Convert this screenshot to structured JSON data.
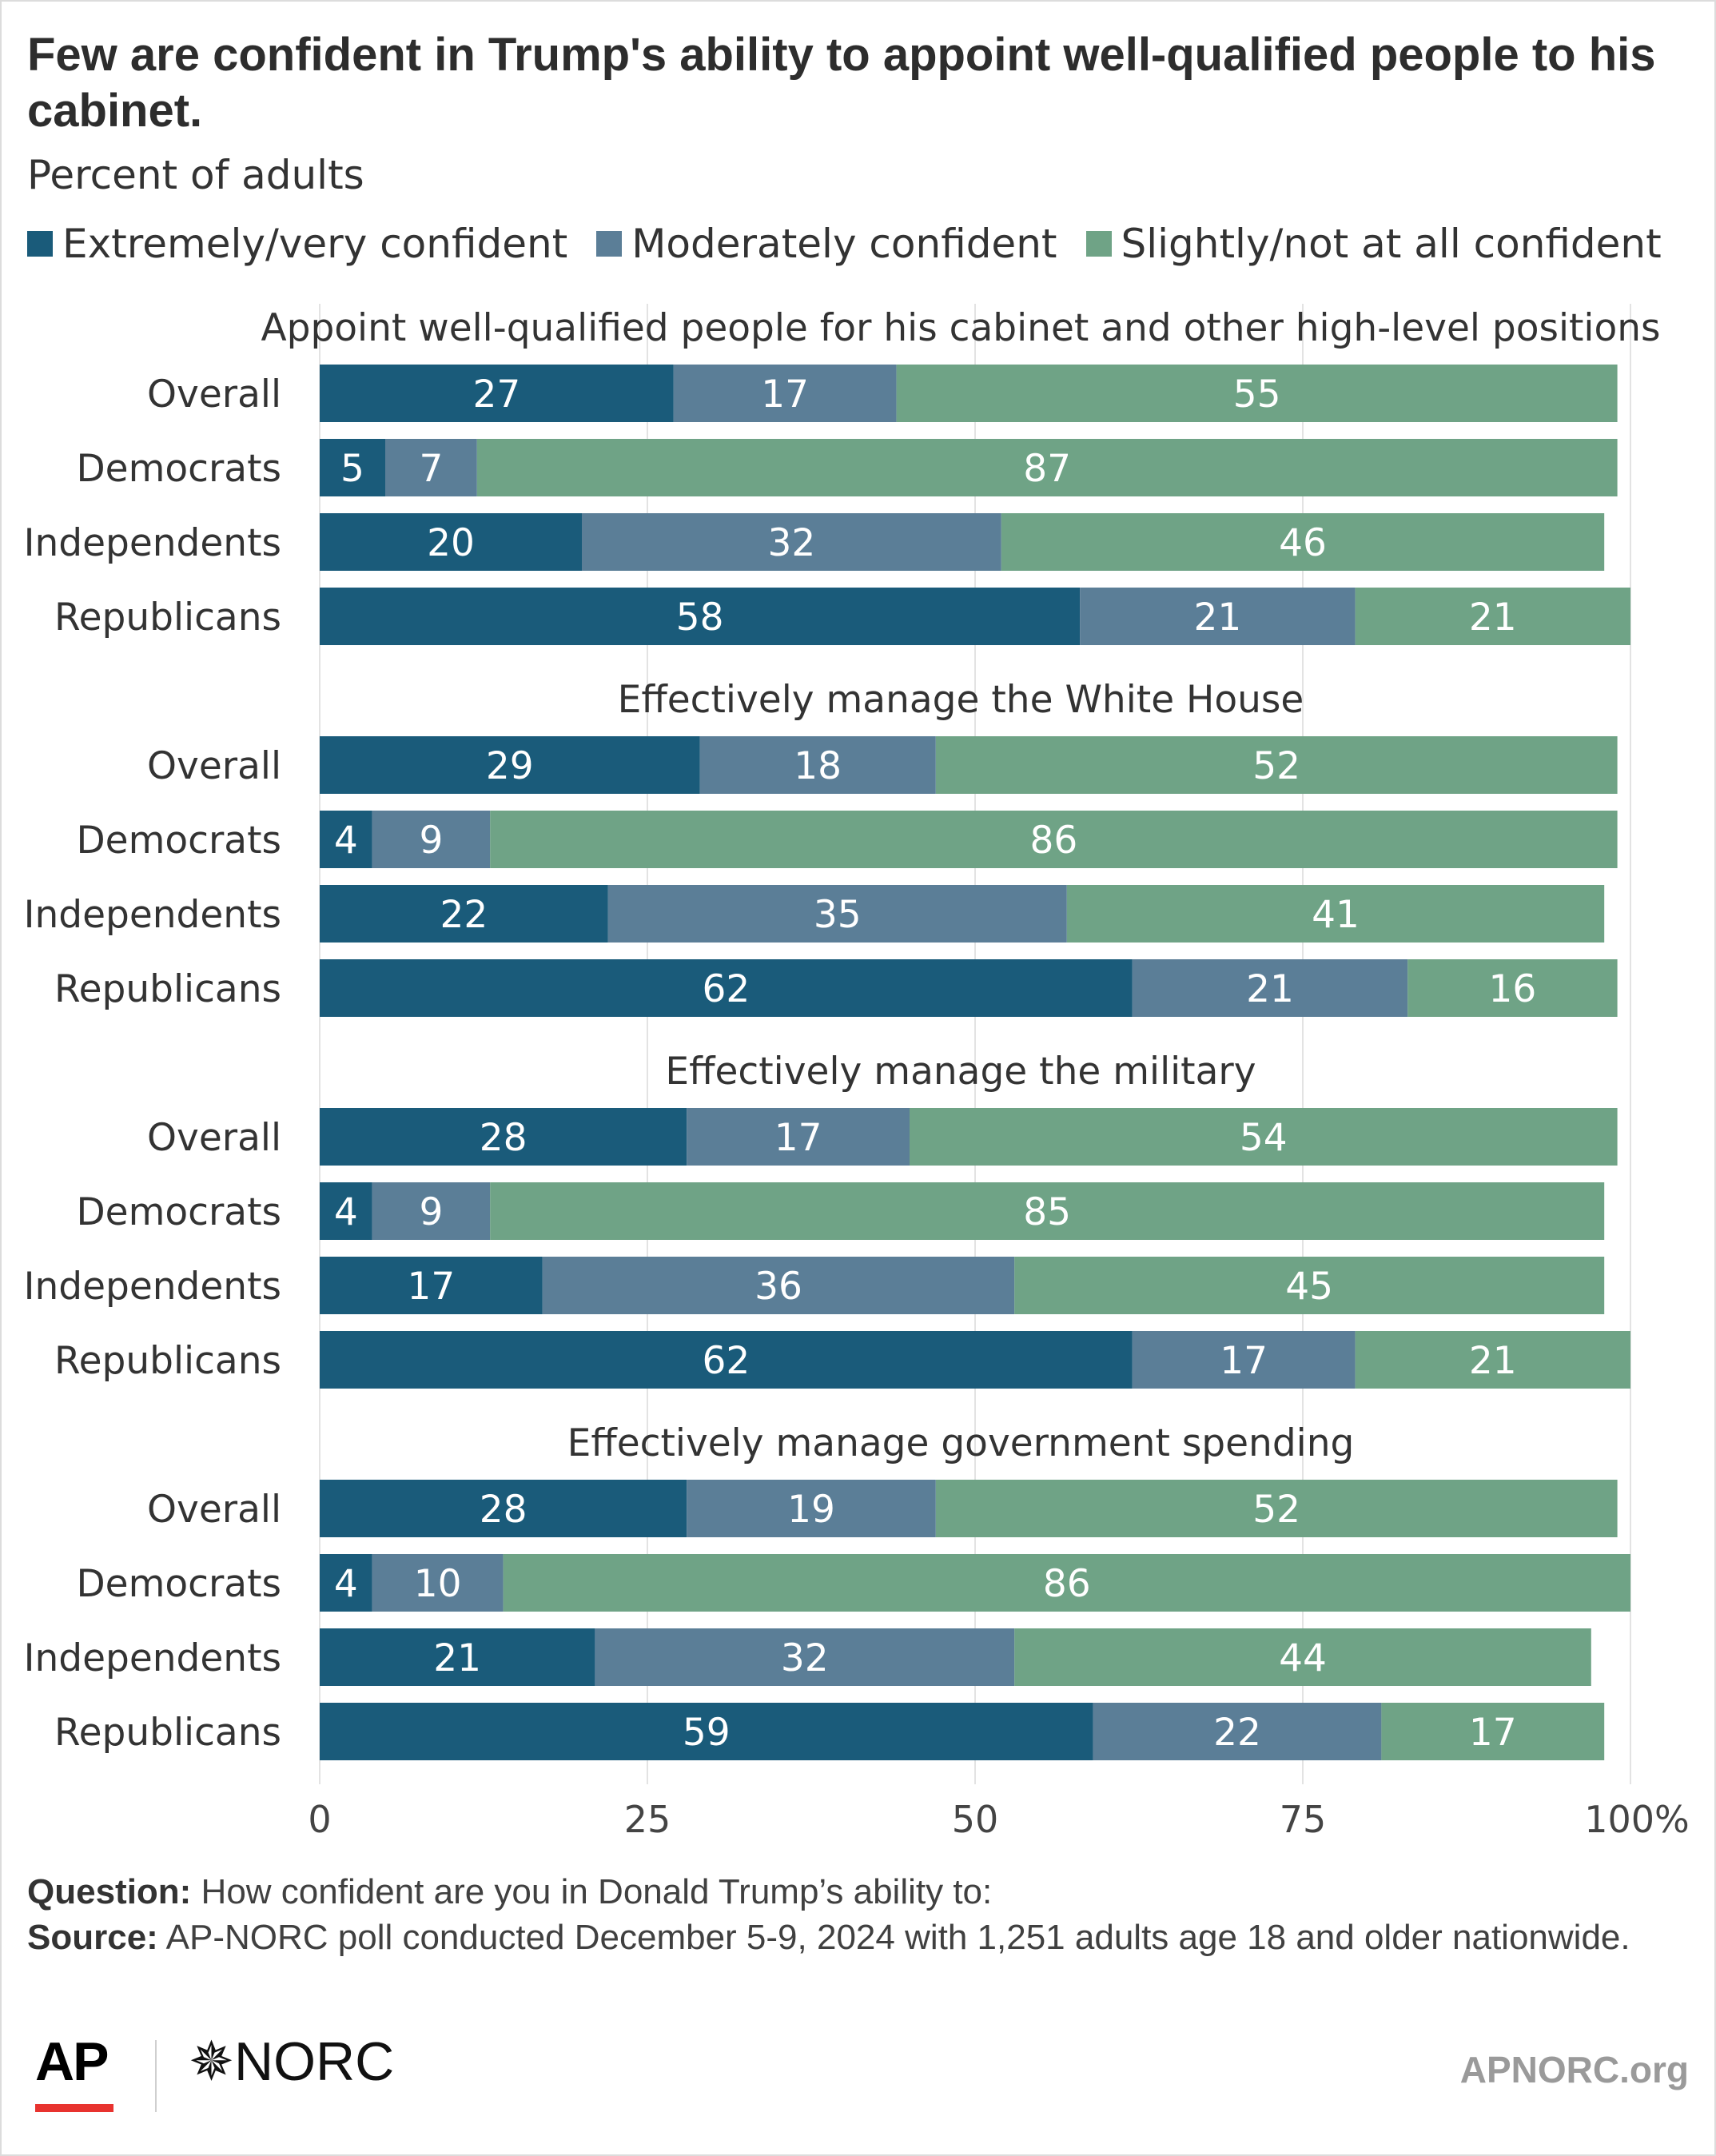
{
  "title": "Few are confident in Trump's ability to appoint well-qualified people to his cabinet.",
  "subtitle": "Percent of adults",
  "legend": [
    {
      "label": "Extremely/very confident",
      "color": "#1a5b7a"
    },
    {
      "label": "Moderately confident",
      "color": "#5b7e97"
    },
    {
      "label": "Slightly/not at all confident",
      "color": "#6fa386"
    }
  ],
  "chart_data": {
    "type": "bar",
    "orientation": "horizontal",
    "stacked": true,
    "xlim": [
      0,
      100
    ],
    "x_ticks": [
      "0",
      "25",
      "50",
      "75",
      "100%"
    ],
    "grid": true,
    "series_names": [
      "Extremely/very confident",
      "Moderately confident",
      "Slightly/not at all confident"
    ],
    "panels": [
      {
        "title": "Appoint well-qualified people for his cabinet and other high-level positions",
        "rows": [
          {
            "label": "Overall",
            "values": [
              27,
              17,
              55
            ]
          },
          {
            "label": "Democrats",
            "values": [
              5,
              7,
              87
            ]
          },
          {
            "label": "Independents",
            "values": [
              20,
              32,
              46
            ]
          },
          {
            "label": "Republicans",
            "values": [
              58,
              21,
              21
            ]
          }
        ]
      },
      {
        "title": "Effectively manage the White House",
        "rows": [
          {
            "label": "Overall",
            "values": [
              29,
              18,
              52
            ]
          },
          {
            "label": "Democrats",
            "values": [
              4,
              9,
              86
            ]
          },
          {
            "label": "Independents",
            "values": [
              22,
              35,
              41
            ]
          },
          {
            "label": "Republicans",
            "values": [
              62,
              21,
              16
            ]
          }
        ]
      },
      {
        "title": "Effectively manage the military",
        "rows": [
          {
            "label": "Overall",
            "values": [
              28,
              17,
              54
            ]
          },
          {
            "label": "Democrats",
            "values": [
              4,
              9,
              85
            ]
          },
          {
            "label": "Independents",
            "values": [
              17,
              36,
              45
            ]
          },
          {
            "label": "Republicans",
            "values": [
              62,
              17,
              21
            ]
          }
        ]
      },
      {
        "title": "Effectively manage government spending",
        "rows": [
          {
            "label": "Overall",
            "values": [
              28,
              19,
              52
            ]
          },
          {
            "label": "Democrats",
            "values": [
              4,
              10,
              86
            ]
          },
          {
            "label": "Independents",
            "values": [
              21,
              32,
              44
            ]
          },
          {
            "label": "Republicans",
            "values": [
              59,
              22,
              17
            ]
          }
        ]
      }
    ]
  },
  "notes": {
    "question_label": "Question:",
    "question_text": " How confident are you in Donald Trump’s ability to:",
    "source_label": "Source:",
    "source_text": " AP-NORC poll conducted December 5-9, 2024 with 1,251 adults age 18 and older nationwide."
  },
  "footer": {
    "ap_logo": "AP",
    "norc_logo": "NORC",
    "site": "APNORC.org"
  }
}
